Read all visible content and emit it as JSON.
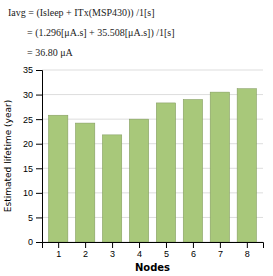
{
  "chart_data": {
    "type": "bar",
    "annotations": [
      "Iavg = (Isleep + ITx(MSP430)) /1[s]",
      "= (1.296[μA.s] + 35.508[μA.s]) /1[s]",
      "= 36.80 μA"
    ],
    "x": [
      1,
      2,
      3,
      4,
      5,
      6,
      7,
      8
    ],
    "values": [
      25.8,
      24.2,
      21.8,
      25.0,
      28.3,
      29.0,
      30.5,
      31.2
    ],
    "color": "#a8c87a",
    "xlabel": "Nodes",
    "ylabel": "Estimated lifetime (year)",
    "xlim": [
      0.4,
      8.6
    ],
    "xticks": [
      1,
      2,
      3,
      4,
      5,
      6,
      7,
      8
    ],
    "ylim": [
      0,
      35
    ],
    "yticks": [
      0,
      5,
      10,
      15,
      20,
      25,
      30,
      35
    ],
    "grid": true
  }
}
